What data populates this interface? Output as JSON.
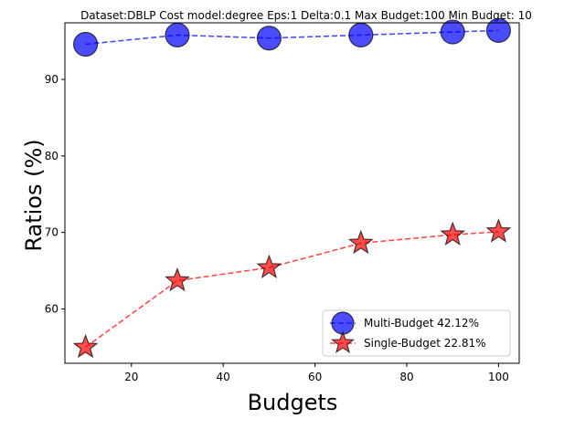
{
  "chart_data": {
    "type": "line",
    "title": "Dataset:DBLP Cost model:degree Eps:1 Delta:0.1 Max Budget:100 Min Budget: 10",
    "xlabel": "Budgets",
    "ylabel": "Ratios (%)",
    "x": [
      10,
      30,
      50,
      70,
      90,
      100
    ],
    "xlim": [
      5.5,
      104.5
    ],
    "ylim": [
      52.9,
      97.4
    ],
    "xticks": [
      20,
      40,
      60,
      80,
      100
    ],
    "yticks": [
      60,
      70,
      80,
      90
    ],
    "grid": false,
    "legend_position": "lower right",
    "series": [
      {
        "name": "Multi-Budget 42.12%",
        "values": [
          94.6,
          95.8,
          95.4,
          95.8,
          96.2,
          96.4
        ],
        "color": "#0000ff",
        "marker": "circle",
        "line_style": "dashed"
      },
      {
        "name": "Single-Budget 22.81%",
        "values": [
          55.0,
          63.7,
          65.4,
          68.6,
          69.7,
          70.1
        ],
        "color": "#ff0000",
        "marker": "star",
        "line_style": "dashed"
      }
    ]
  }
}
